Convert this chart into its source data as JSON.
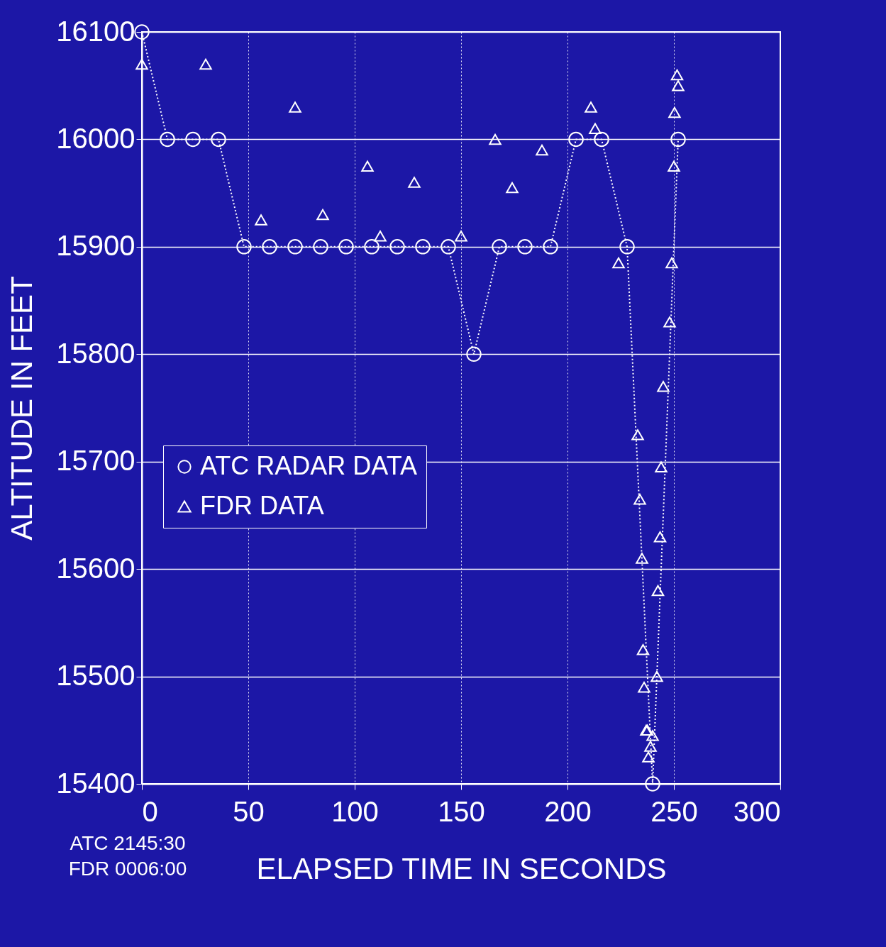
{
  "chart_data": {
    "type": "line",
    "xlabel": "ELAPSED TIME IN SECONDS",
    "ylabel": "ALTITUDE IN FEET",
    "xlim": [
      0,
      300
    ],
    "xticks": [
      0,
      50,
      100,
      150,
      200,
      250,
      300
    ],
    "ylim": [
      15400,
      16100
    ],
    "yticks": [
      15400,
      15500,
      15600,
      15700,
      15800,
      15900,
      16000,
      16100
    ],
    "grid": true,
    "legend": "left",
    "annotations": [
      "ATC 2145:30",
      "FDR 0006:00"
    ],
    "series": [
      {
        "name": "ATC RADAR DATA",
        "color": "#ffffff",
        "marker": "circle",
        "line_style": "dotted",
        "x": [
          0,
          12,
          24,
          36,
          48,
          60,
          72,
          84,
          96,
          108,
          120,
          132,
          144,
          156,
          168,
          180,
          192,
          204,
          216,
          228,
          240,
          252
        ],
        "values": [
          16100,
          16000,
          16000,
          16000,
          15900,
          15900,
          15900,
          15900,
          15900,
          15900,
          15900,
          15900,
          15900,
          15800,
          15900,
          15900,
          15900,
          16000,
          16000,
          15900,
          15400,
          16000
        ]
      },
      {
        "name": "FDR DATA",
        "type": "scatter",
        "color": "#ffffff",
        "marker": "triangle",
        "x": [
          0,
          30,
          56,
          72,
          85,
          106,
          112,
          128,
          150,
          166,
          174,
          188,
          211,
          213,
          224,
          233,
          234,
          235,
          235.5,
          236,
          237,
          237.5,
          238,
          239,
          240,
          242,
          242.5,
          243.5,
          244,
          245,
          248,
          249,
          250,
          250.3,
          251.5,
          252
        ],
        "values": [
          16070,
          16070,
          15925,
          16030,
          15930,
          15975,
          15910,
          15960,
          15910,
          16000,
          15955,
          15990,
          16030,
          16010,
          15885,
          15725,
          15665,
          15610,
          15525,
          15490,
          15450,
          15450,
          15425,
          15435,
          15445,
          15500,
          15580,
          15630,
          15695,
          15770,
          15830,
          15885,
          15975,
          16025,
          16060,
          16050
        ]
      }
    ]
  }
}
